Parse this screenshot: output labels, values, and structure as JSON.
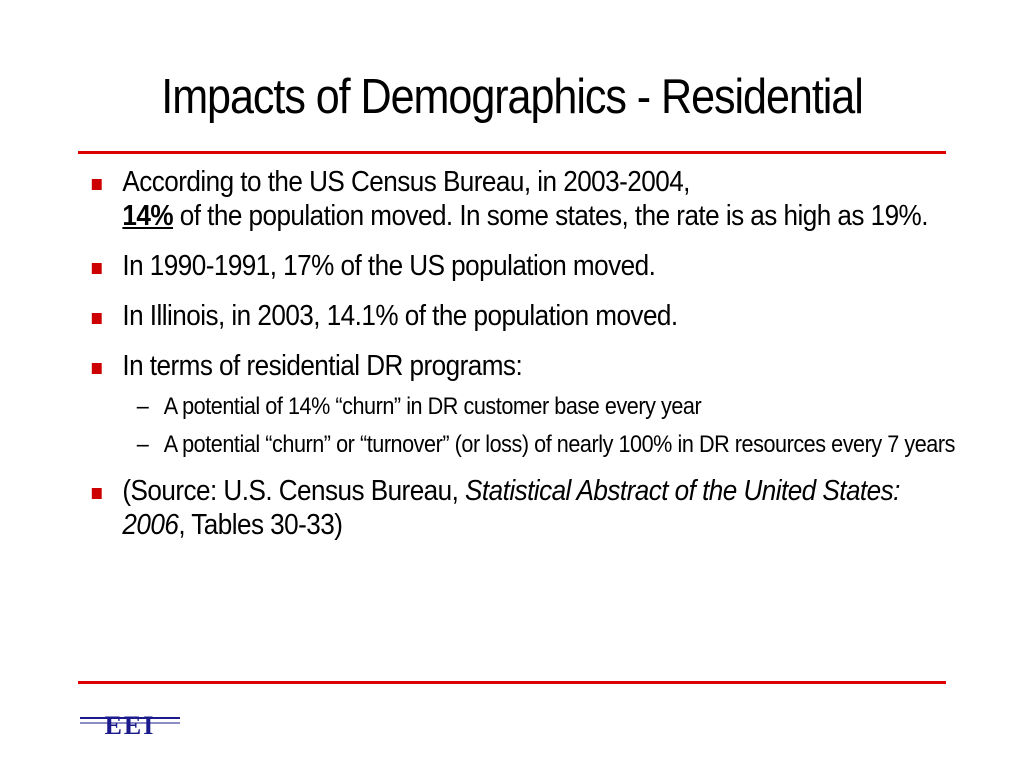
{
  "slide": {
    "title": "Impacts of Demographics - Residential"
  },
  "bullets": {
    "b1_part1": "According to the US Census Bureau, in 2003-2004,",
    "b1_emph": "14%",
    "b1_part2": " of the population moved.  In some states, the rate is as high as 19%.",
    "b2": "In 1990-1991, 17% of the US population moved.",
    "b3": "In Illinois, in 2003, 14.1% of the population moved.",
    "b4": "In terms of residential DR programs:",
    "sub1": "A potential of 14% “churn” in DR customer base every year",
    "sub2": "A potential “churn” or “turnover” (or loss) of nearly 100% in DR resources every 7 years",
    "b5_part1": "(Source:  U.S. Census Bureau, ",
    "b5_ital": "Statistical Abstract of the United States:  2006",
    "b5_part2": ", Tables 30-33)",
    "sub_dash": "–"
  },
  "logo": {
    "text": "EEI",
    "color": "#1a1a8c"
  },
  "colors": {
    "rule": "#dd0000",
    "bullet_marker": "#cc0000"
  }
}
